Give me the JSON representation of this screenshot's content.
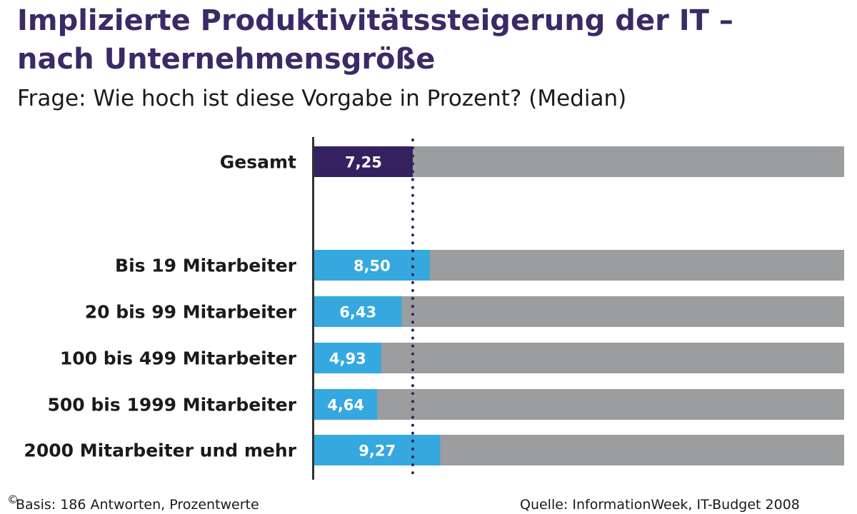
{
  "title_line1": "Implizierte Produktivitätssteigerung der IT –",
  "title_line2": "nach Unternehmensgröße",
  "subtitle": "Frage: Wie hoch ist diese Vorgabe in Prozent? (Median)",
  "footer_left": "Basis: 186 Antworten, Prozentwerte",
  "footer_right": "Quelle: InformationWeek, IT-Budget 2008",
  "copyright": "©",
  "colors": {
    "total": "#35215f",
    "segment": "#35a8df",
    "track": "#9b9d9f",
    "axis": "#333333",
    "reference": "#35215f"
  },
  "chart_data": {
    "type": "bar",
    "orientation": "horizontal",
    "title": "Implizierte Produktivitätssteigerung der IT – nach Unternehmensgröße",
    "subtitle": "Frage: Wie hoch ist diese Vorgabe in Prozent? (Median)",
    "categories": [
      "Gesamt",
      "Bis 19 Mitarbeiter",
      "20 bis 99 Mitarbeiter",
      "100 bis 499 Mitarbeiter",
      "500 bis 1999 Mitarbeiter",
      "2000 Mitarbeiter und mehr"
    ],
    "values": [
      7.25,
      8.5,
      6.43,
      4.93,
      4.64,
      9.27
    ],
    "value_labels": [
      "7,25",
      "8,50",
      "6,43",
      "4,93",
      "4,64",
      "9,27"
    ],
    "highlight": "Gesamt",
    "reference_line": 7.25,
    "xlim": [
      0,
      39
    ],
    "grid": false
  }
}
